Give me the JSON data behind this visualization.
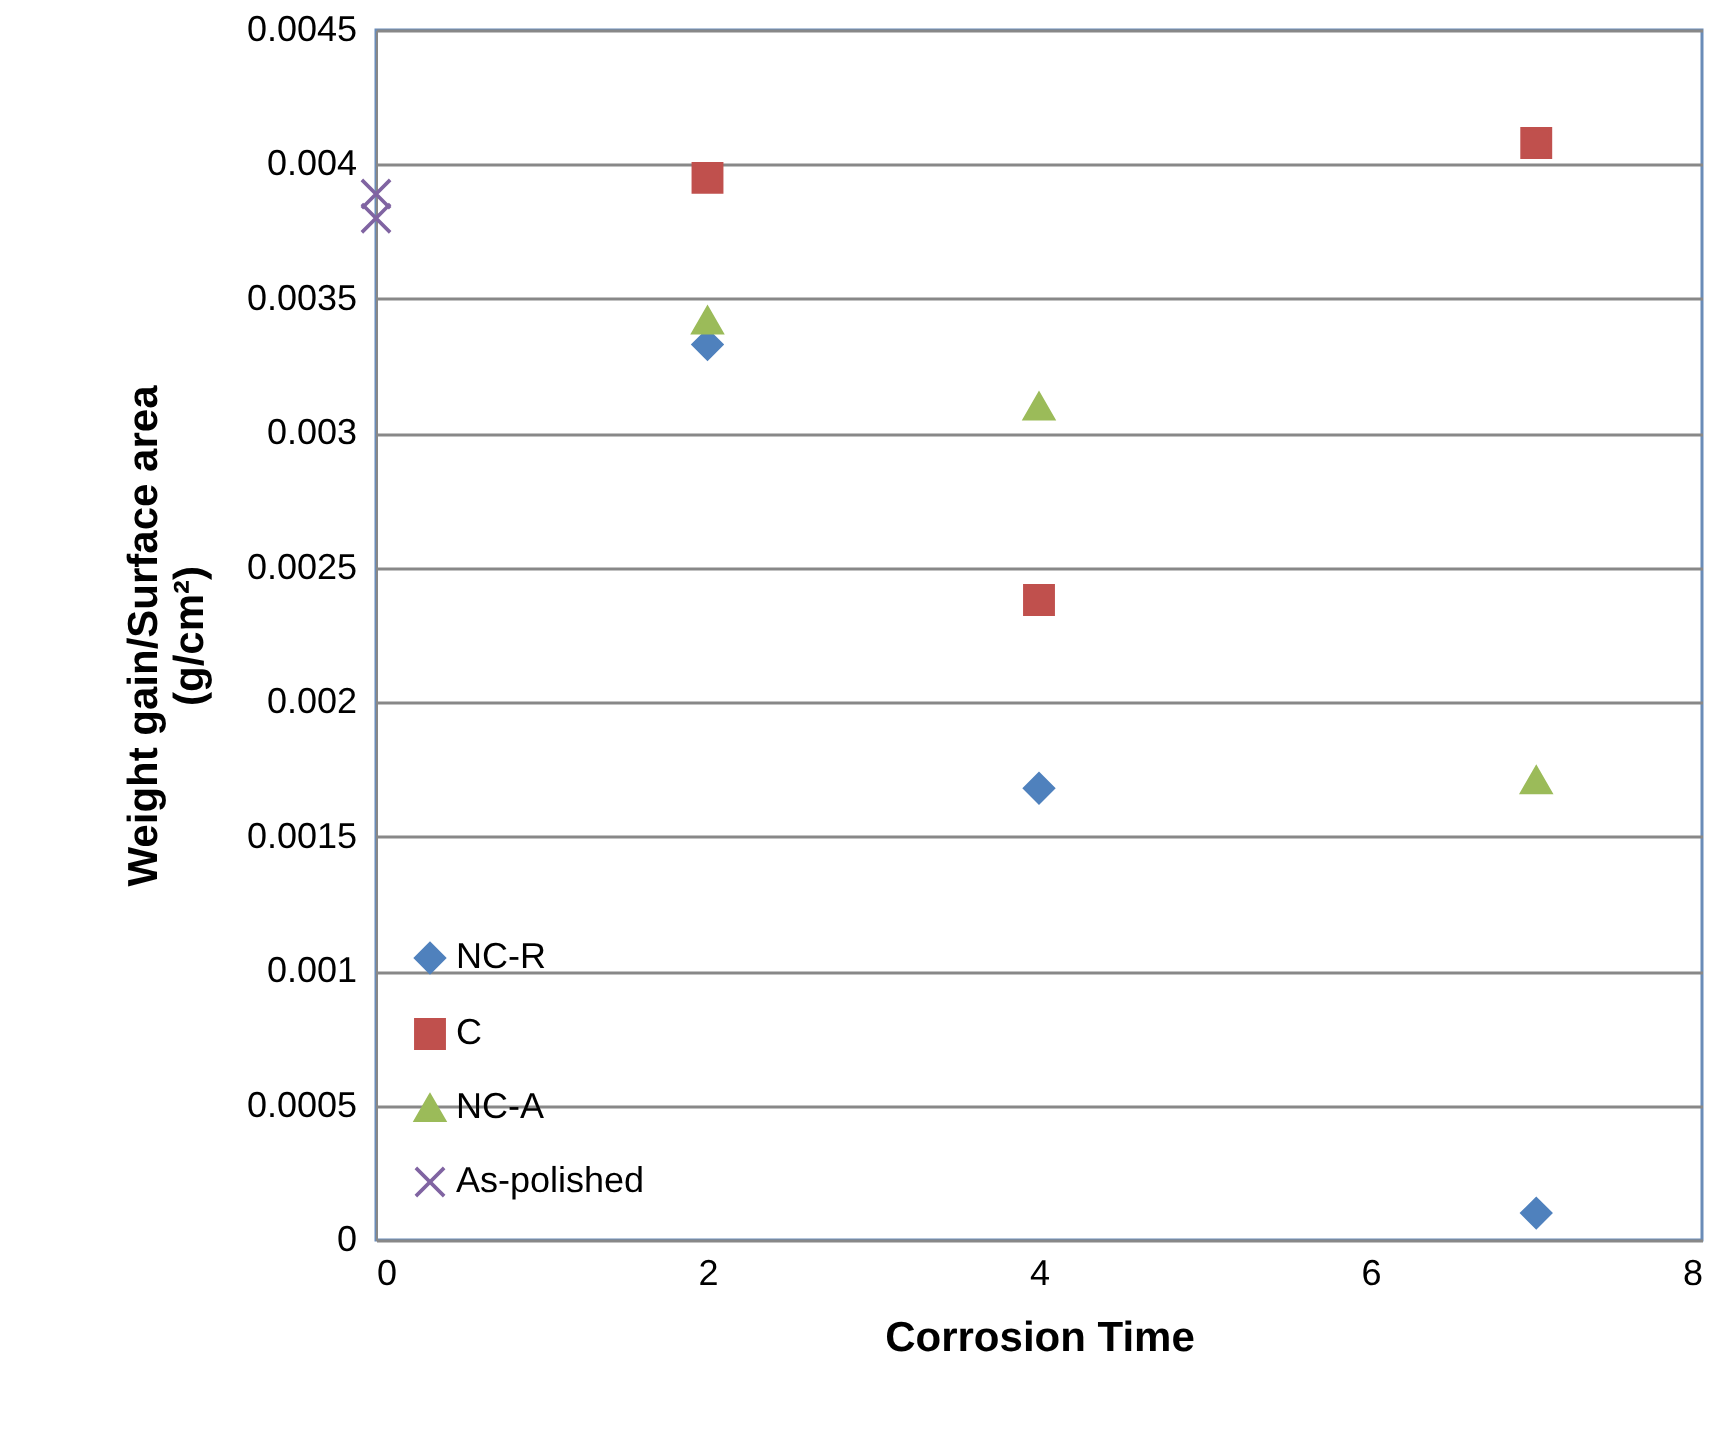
{
  "chart_data": {
    "type": "scatter",
    "xlabel": "Corrosion Time",
    "ylabel": "Weight gain/Surface area\n(g/cm²)",
    "xlim": [
      0,
      8
    ],
    "xticks": [
      0,
      2,
      4,
      6,
      8
    ],
    "ylim": [
      0,
      0.0045
    ],
    "yticks": [
      0,
      0.0005,
      0.001,
      0.0015,
      0.002,
      0.0025,
      0.003,
      0.0035,
      0.004,
      0.0045
    ],
    "grid": "y",
    "legend": "bottom left",
    "series": [
      {
        "name": "NC-R",
        "color": "#4f81bd",
        "marker": "diamond",
        "x": [
          2,
          4,
          7
        ],
        "values": [
          0.00333,
          0.00168,
          0.0001
        ]
      },
      {
        "name": "C",
        "color": "#c0504d",
        "marker": "square",
        "x": [
          2,
          4,
          7
        ],
        "values": [
          0.00395,
          0.00238,
          0.00408
        ]
      },
      {
        "name": "NC-A",
        "color": "#9bbb59",
        "marker": "triangle",
        "x": [
          2,
          4,
          7
        ],
        "values": [
          0.00342,
          0.0031,
          0.00171
        ]
      },
      {
        "name": "As-polished",
        "color": "#8064a2",
        "marker": "cross",
        "x": [
          0,
          0
        ],
        "values": [
          0.00389,
          0.0038
        ]
      }
    ]
  }
}
